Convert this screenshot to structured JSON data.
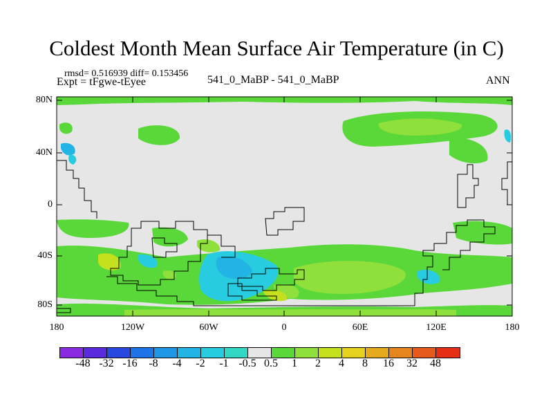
{
  "title": "Coldest Month Mean Surface Air Temperature (in C)",
  "stats": "rmsd= 0.516939 diff= 0.153456",
  "expt": "Expt = tFgwe-tEyee",
  "experiment_label": "541_0_MaBP - 541_0_MaBP",
  "season": "ANN",
  "lat_labels": [
    "80N",
    "40N",
    "0",
    "40S",
    "80S"
  ],
  "lon_labels": [
    "180",
    "120W",
    "60W",
    "0",
    "60E",
    "120E",
    "180"
  ],
  "colorbar": {
    "levels": [
      "-48",
      "-32",
      "-16",
      "-8",
      "-4",
      "-2",
      "-1",
      "-0.5",
      "0.5",
      "1",
      "2",
      "4",
      "8",
      "16",
      "32",
      "48"
    ],
    "colors": [
      "#8a2be2",
      "#5a2bdc",
      "#2849e0",
      "#1e74e6",
      "#2096e6",
      "#22b4e4",
      "#28cce0",
      "#32d8c4",
      "#e6e6e6",
      "#5ad83a",
      "#8fe03a",
      "#c4e01e",
      "#e6d21e",
      "#e6aa1e",
      "#e6841e",
      "#e65a1e",
      "#e62e14"
    ]
  },
  "map": {
    "background_color": "#e6e6e6",
    "coast_color": "#000000"
  }
}
